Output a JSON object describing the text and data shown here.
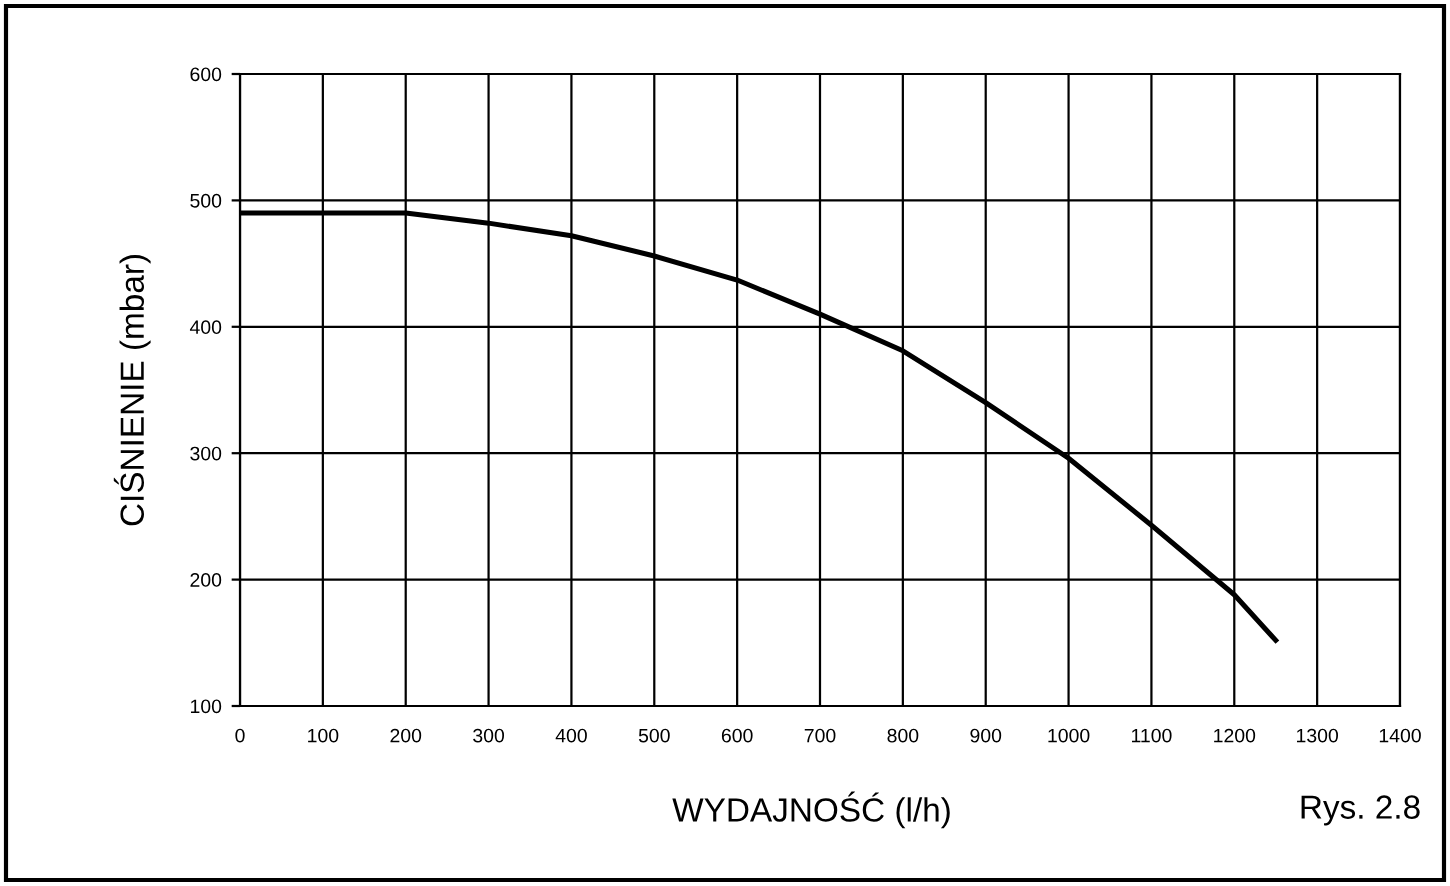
{
  "chart_data": {
    "type": "line",
    "xlabel": "WYDAJNOŚĆ (l/h)",
    "ylabel": "CIŚNIENIE (mbar)",
    "annotations": [
      "Rys. 2.8"
    ],
    "x": [
      0,
      200,
      300,
      400,
      500,
      600,
      700,
      800,
      900,
      1000,
      1100,
      1200,
      1250
    ],
    "series": [
      {
        "color": "#000000",
        "values": [
          490,
          490,
          482,
          472,
          456,
          437,
          410,
          381,
          340,
          296,
          243,
          188,
          152
        ]
      }
    ],
    "xlim": [
      0,
      1400
    ],
    "ylim": [
      100,
      600
    ],
    "xticks": [
      0,
      100,
      200,
      300,
      400,
      500,
      600,
      700,
      800,
      900,
      1000,
      1100,
      1200,
      1300,
      1400
    ],
    "yticks": [
      100,
      200,
      300,
      400,
      500,
      600
    ],
    "grid": true,
    "legend": false,
    "marker": "none",
    "line_style": "solid"
  }
}
